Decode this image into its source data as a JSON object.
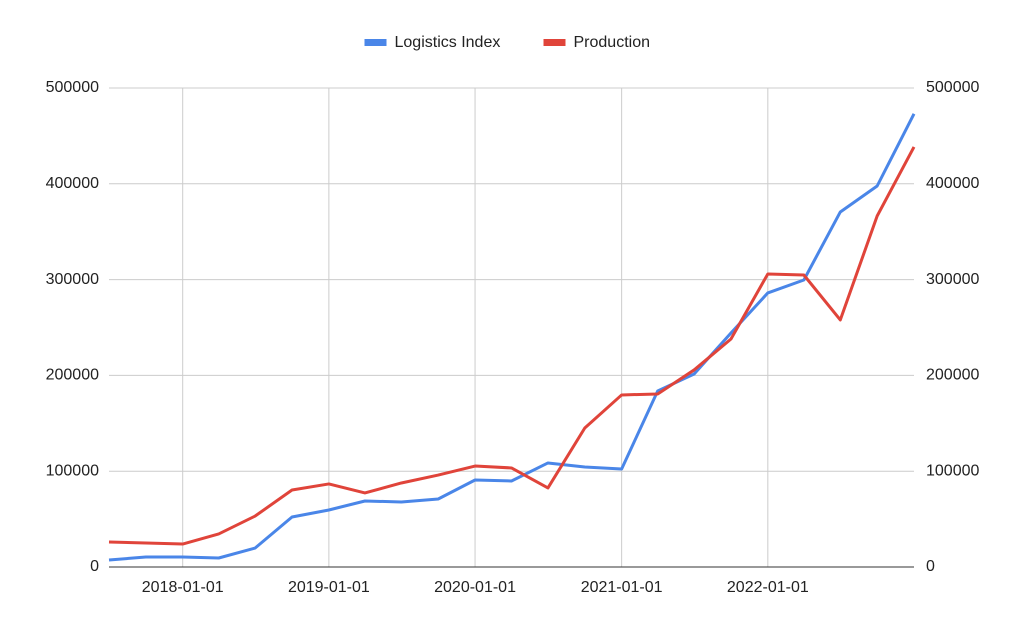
{
  "chart_data": {
    "type": "line",
    "x": [
      "2017-07-01",
      "2017-10-01",
      "2018-01-01",
      "2018-04-01",
      "2018-07-01",
      "2018-10-01",
      "2019-01-01",
      "2019-04-01",
      "2019-07-01",
      "2019-10-01",
      "2020-01-01",
      "2020-04-01",
      "2020-07-01",
      "2020-10-01",
      "2021-01-01",
      "2021-04-01",
      "2021-07-01",
      "2021-10-01",
      "2022-01-01",
      "2022-04-01",
      "2022-07-01",
      "2022-10-01",
      "2023-01-01"
    ],
    "series": [
      {
        "name": "Logistics Index",
        "color": "#4a86e8",
        "axis": "y",
        "values": [
          7300,
          10400,
          10400,
          9400,
          19800,
          52200,
          59500,
          68900,
          67900,
          71000,
          90800,
          89800,
          108600,
          104400,
          102300,
          183700,
          201500,
          244300,
          286100,
          299600,
          370600,
          397700,
          473000
        ]
      },
      {
        "name": "Production",
        "color": "#e0443a",
        "axis": "y2",
        "values": [
          26100,
          25100,
          24000,
          34500,
          53200,
          80400,
          86700,
          77300,
          87700,
          96000,
          105400,
          103400,
          82500,
          145100,
          179600,
          180600,
          205700,
          238000,
          305900,
          304800,
          257900,
          366400,
          438500
        ]
      }
    ],
    "xlim": [
      "2017-07-01",
      "2023-01-01"
    ],
    "xticks": [
      "2018-01-01",
      "2019-01-01",
      "2020-01-01",
      "2021-01-01",
      "2022-01-01"
    ],
    "ylim": [
      0,
      500000
    ],
    "yticks": [
      0,
      100000,
      200000,
      300000,
      400000,
      500000
    ],
    "y2lim": [
      0,
      500000
    ],
    "y2ticks": [
      0,
      100000,
      200000,
      300000,
      400000,
      500000
    ],
    "grid": true,
    "legend": "top"
  }
}
